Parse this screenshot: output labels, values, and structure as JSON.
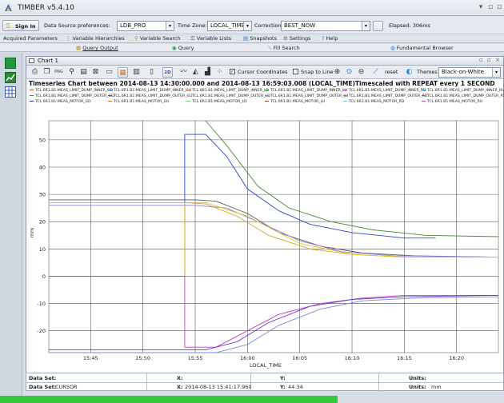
{
  "app": {
    "title": "TIMBER v5.4.10"
  },
  "toolbar": {
    "sign_in": "Sign In",
    "ds_label": "Data Source preferences:",
    "ds_value": "LDB_PRO",
    "tz_label": "Time Zone:",
    "tz_value": "LOCAL_TIME",
    "corr_label": "Correction",
    "corr_value": "BEST_NOW",
    "elapsed": "Elapsed: 306ms"
  },
  "tabs_primary": [
    "Acquired Parameters",
    "Variable Hierarchies",
    "Variable Search",
    "Variable Lists",
    "Snapshots",
    "Settings",
    "Help"
  ],
  "tabs_secondary": [
    "Query Output",
    "Query",
    "Fill Search",
    "Fundamental Browser"
  ],
  "chart_window": {
    "title": "Chart 1",
    "cursor_coords": "Cursor Coordinates",
    "snap_to_line": "Snap to Line",
    "reset": "reset",
    "themes_label": "Themes",
    "themes_value": "Black-on-White",
    "btn_2d": "2D"
  },
  "chart_heading": "Timeseries Chart between 2014-08-13 14:30:00.000 and 2014-08-13 16:59:03.008 (LOCAL_TIME)Timescaled with REPEAT every 1 SECOND",
  "legend": [
    {
      "label": "TCL.6R1.B1:MEAS_LIMIT_DUMP_INNER_GD",
      "color": "#d93a3a"
    },
    {
      "label": "TCL.6R1.B1:MEAS_LIMIT_DUMP_INNER_GU",
      "color": "#3a7ad9"
    },
    {
      "label": "TCL.6R1.B1:MEAS_LIMIT_DUMP_INNER_LD",
      "color": "#d98a2a"
    },
    {
      "label": "TCL.6R1.B1:MEAS_LIMIT_DUMP_INNER_LU",
      "color": "#3aa84a"
    },
    {
      "label": "TCL.6R1.B1:MEAS_LIMIT_DUMP_INNER_RD",
      "color": "#c23ac2"
    },
    {
      "label": "TCL.6R1.B1:MEAS_LIMIT_DUMP_INNER_RU",
      "color": "#2a9ad9"
    },
    {
      "label": "TCL.6R1.B1:MEAS_LIMIT_DUMP_OUTER_GD",
      "color": "#8a6a2a"
    },
    {
      "label": "TCL.6R1.B1:MEAS_LIMIT_DUMP_OUTER_GU",
      "color": "#6a3ad9"
    },
    {
      "label": "TCL.6R1.B1:MEAS_LIMIT_DUMP_OUTER_LD",
      "color": "#d9c22a"
    },
    {
      "label": "TCL.6R1.B1:MEAS_LIMIT_DUMP_OUTER_LU",
      "color": "#2ac2a8"
    },
    {
      "label": "TCL.6R1.B1:MEAS_LIMIT_DUMP_OUTER_RD",
      "color": "#d95a8a"
    },
    {
      "label": "TCL.6R1.B1:MEAS_LIMIT_DUMP_OUTER_RU",
      "color": "#5a8a2a"
    },
    {
      "label": "TCL.6R1.B1:MEAS_MOTOR_GD",
      "color": "#2a2ad9"
    },
    {
      "label": "TCL.6R1.B1:MEAS_MOTOR_GU",
      "color": "#d96a2a"
    },
    {
      "label": "TCL.6R1.B1:MEAS_MOTOR_LD",
      "color": "#3ad95a"
    },
    {
      "label": "TCL.6R1.B1:MEAS_MOTOR_LU",
      "color": "#a83a3a"
    },
    {
      "label": "TCL.6R1.B1:MEAS_MOTOR_RD",
      "color": "#3ad9d9"
    },
    {
      "label": "TCL.6R1.B1:MEAS_MOTOR_RU",
      "color": "#d93a9a"
    }
  ],
  "chart_data": {
    "type": "line",
    "xlabel": "LOCAL_TIME",
    "ylabel": "mm",
    "x_ticks": [
      "15:45",
      "15:50",
      "15:55",
      "16:00",
      "16:05",
      "16:10",
      "16:15",
      "16:20"
    ],
    "y_ticks": [
      "50",
      "40",
      "30",
      "20",
      "10",
      "0",
      "-10",
      "-20"
    ],
    "xlim": [
      "15:41",
      "16:24"
    ],
    "ylim": [
      -28,
      57
    ],
    "grid": true,
    "series": [
      {
        "color": "#2a46d9",
        "points": [
          [
            "15:41",
            0
          ],
          [
            "15:54",
            0
          ],
          [
            "15:54",
            52
          ],
          [
            "15:56",
            52
          ],
          [
            "15:58",
            44
          ],
          [
            "16:00",
            32
          ],
          [
            "16:03",
            24
          ],
          [
            "16:06",
            19
          ],
          [
            "16:10",
            16
          ],
          [
            "16:15",
            14
          ],
          [
            "16:18",
            14
          ]
        ]
      },
      {
        "color": "#4a8a3a",
        "points": [
          [
            "15:56",
            57
          ],
          [
            "15:58",
            48
          ],
          [
            "16:01",
            33
          ],
          [
            "16:04",
            25
          ],
          [
            "16:08",
            20
          ],
          [
            "16:12",
            17
          ],
          [
            "16:17",
            15
          ],
          [
            "16:24",
            14.5
          ]
        ]
      },
      {
        "color": "#d9a82a",
        "points": [
          [
            "15:41",
            27
          ],
          [
            "15:54",
            27
          ],
          [
            "15:56",
            26.5
          ],
          [
            "15:59",
            22
          ],
          [
            "16:02",
            15
          ],
          [
            "16:06",
            10
          ],
          [
            "16:10",
            8
          ],
          [
            "16:15",
            7
          ],
          [
            "16:24",
            7
          ]
        ]
      },
      {
        "color": "#5a5a5a",
        "points": [
          [
            "15:41",
            28
          ],
          [
            "15:55",
            28
          ],
          [
            "15:57",
            27.5
          ],
          [
            "16:00",
            23
          ],
          [
            "16:03",
            16
          ],
          [
            "16:07",
            11
          ],
          [
            "16:11",
            8.5
          ],
          [
            "16:16",
            7.5
          ],
          [
            "16:24",
            7
          ]
        ]
      },
      {
        "color": "#9a7ad9",
        "points": [
          [
            "15:41",
            26
          ],
          [
            "15:55",
            26
          ],
          [
            "15:58",
            25
          ],
          [
            "16:01",
            20
          ],
          [
            "16:05",
            13
          ],
          [
            "16:09",
            9
          ],
          [
            "16:14",
            7.5
          ],
          [
            "16:24",
            7
          ]
        ]
      },
      {
        "color": "#e0c020",
        "points": [
          [
            "15:41",
            0
          ],
          [
            "15:54",
            0
          ],
          [
            "15:54",
            27
          ],
          [
            "15:56",
            27
          ],
          [
            "16:00",
            22
          ],
          [
            "16:05",
            12
          ],
          [
            "16:10",
            8
          ],
          [
            "16:15",
            7
          ],
          [
            "16:24",
            7
          ]
        ]
      },
      {
        "color": "#c23ac2",
        "points": [
          [
            "15:41",
            0
          ],
          [
            "15:54",
            0
          ],
          [
            "15:54",
            -26
          ],
          [
            "15:57",
            -26
          ],
          [
            "16:00",
            -20
          ],
          [
            "16:03",
            -14
          ],
          [
            "16:07",
            -10
          ],
          [
            "16:11",
            -8
          ],
          [
            "16:15",
            -7
          ],
          [
            "16:24",
            -7
          ]
        ]
      },
      {
        "color": "#6a3ad9",
        "points": [
          [
            "15:41",
            -27
          ],
          [
            "15:56",
            -27
          ],
          [
            "15:59",
            -24
          ],
          [
            "16:02",
            -17
          ],
          [
            "16:06",
            -11
          ],
          [
            "16:10",
            -8.5
          ],
          [
            "16:15",
            -7.5
          ],
          [
            "16:24",
            -7
          ]
        ]
      },
      {
        "color": "#7a8ad9",
        "points": [
          [
            "15:41",
            -28
          ],
          [
            "15:57",
            -28
          ],
          [
            "16:00",
            -25
          ],
          [
            "16:03",
            -18
          ],
          [
            "16:07",
            -12
          ],
          [
            "16:11",
            -9
          ],
          [
            "16:16",
            -8
          ],
          [
            "16:24",
            -7.5
          ]
        ]
      }
    ]
  },
  "info": {
    "row1": {
      "ds_label": "Data Set:",
      "ds_value": "",
      "x_label": "X:",
      "x_value": "",
      "y_label": "Y:",
      "y_value": "",
      "units_label": "Units:",
      "units_value": ""
    },
    "row2": {
      "ds_label": "Data Set:",
      "ds_value": "CURSOR",
      "x_label": "X:",
      "x_value": "2014-08-13 15:41:17.960",
      "y_label": "Y:",
      "y_value": "44.34",
      "units_label": "Units:",
      "units_value": "mm"
    }
  },
  "status": {
    "progress": 0.67,
    "bar_color": "#35c83a"
  }
}
